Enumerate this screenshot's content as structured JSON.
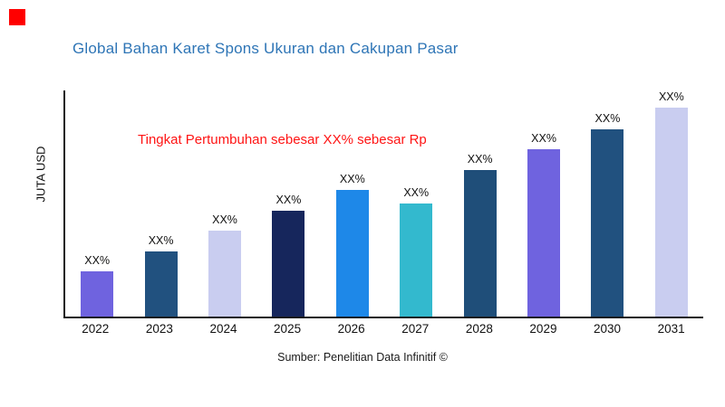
{
  "page": {
    "title": "Global Bahan Karet Spons Ukuran dan Cakupan Pasar",
    "title_color": "#2E75B6",
    "annotation_text": "Tingkat Pertumbuhan sebesar XX% sebesar Rp",
    "annotation_color": "#FF1414",
    "source_text": "Sumber: Penelitian Data Infinitif ©",
    "y_axis_label": "JUTA USD",
    "brand_square_color": "#FF0000",
    "axis_color": "#1a1a1a"
  },
  "chart_data": {
    "type": "bar",
    "title": "Global Bahan Karet Spons Ukuran dan Cakupan Pasar",
    "xlabel": "",
    "ylabel": "JUTA USD",
    "ylim": [
      0,
      100
    ],
    "grid": false,
    "legend": false,
    "categories": [
      "2022",
      "2023",
      "2024",
      "2025",
      "2026",
      "2027",
      "2028",
      "2029",
      "2030",
      "2031"
    ],
    "values": [
      20,
      29,
      38,
      47,
      56,
      50,
      65,
      74,
      83,
      93
    ],
    "bar_labels": [
      "XX%",
      "XX%",
      "XX%",
      "XX%",
      "XX%",
      "XX%",
      "XX%",
      "XX%",
      "XX%",
      "XX%"
    ],
    "bar_colors": [
      "#6F63DF",
      "#21517F",
      "#C9CDF0",
      "#16265C",
      "#1E88E8",
      "#33B9CE",
      "#1F4E79",
      "#6F63DF",
      "#21517F",
      "#C9CDF0"
    ],
    "annotation": "Tingkat Pertumbuhan sebesar XX% sebesar Rp"
  }
}
